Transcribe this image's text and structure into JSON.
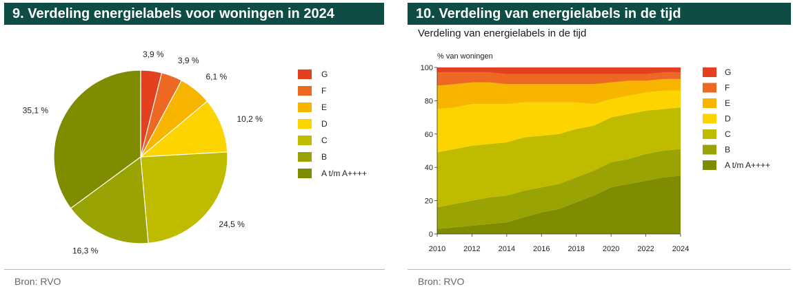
{
  "colors": {
    "G": "#e2401f",
    "F": "#ec6823",
    "E": "#f7b500",
    "D": "#fdd300",
    "C": "#bfbc00",
    "B": "#9aa304",
    "A": "#7f8c00",
    "banner": "#0f4c46"
  },
  "panel_left": {
    "title": "9. Verdeling energielabels voor woningen in 2024",
    "source": "Bron: RVO"
  },
  "panel_right": {
    "title": "10. Verdeling van energielabels in de tijd",
    "subtitle": "Verdeling van energielabels in de tijd",
    "source": "Bron: RVO"
  },
  "chart_data": [
    {
      "type": "pie",
      "slices": [
        {
          "label": "G",
          "value": 3.9,
          "display": "3,9 %"
        },
        {
          "label": "F",
          "value": 3.9,
          "display": "3,9 %"
        },
        {
          "label": "E",
          "value": 6.1,
          "display": "6,1 %"
        },
        {
          "label": "D",
          "value": 10.2,
          "display": "10,2 %"
        },
        {
          "label": "C",
          "value": 24.5,
          "display": "24,5 %"
        },
        {
          "label": "B",
          "value": 16.3,
          "display": "16,3 %"
        },
        {
          "label": "A t/m A++++",
          "value": 35.1,
          "display": "35,1 %"
        }
      ],
      "legend": [
        "G",
        "F",
        "E",
        "D",
        "C",
        "B",
        "A t/m A++++"
      ],
      "legend_position": "right"
    },
    {
      "type": "area",
      "stacked": true,
      "ylabel": "% van woningen",
      "ylim": [
        0,
        100
      ],
      "yticks": [
        0,
        20,
        40,
        60,
        80,
        100
      ],
      "xlim": [
        2010,
        2024
      ],
      "xticks": [
        2010,
        2012,
        2014,
        2016,
        2018,
        2020,
        2022,
        2024
      ],
      "x": [
        2010,
        2011,
        2012,
        2013,
        2014,
        2015,
        2016,
        2017,
        2018,
        2019,
        2020,
        2021,
        2022,
        2023,
        2024
      ],
      "series": [
        {
          "name": "A t/m A++++",
          "values": [
            3,
            4,
            5,
            6,
            7,
            10,
            13,
            15,
            19,
            23,
            28,
            30,
            32,
            34,
            35
          ]
        },
        {
          "name": "B",
          "values": [
            13,
            14,
            15,
            16,
            16,
            16,
            15,
            15,
            15,
            15,
            15,
            15,
            16,
            16,
            16
          ]
        },
        {
          "name": "C",
          "values": [
            33,
            33,
            33,
            32,
            32,
            32,
            31,
            30,
            29,
            27,
            27,
            27,
            26,
            25,
            25
          ]
        },
        {
          "name": "D",
          "values": [
            26,
            25,
            25,
            24,
            23,
            21,
            20,
            19,
            16,
            13,
            11,
            11,
            11,
            11,
            10
          ]
        },
        {
          "name": "E",
          "values": [
            14,
            14,
            13,
            13,
            12,
            11,
            11,
            11,
            11,
            12,
            10,
            9,
            7,
            7,
            7
          ]
        },
        {
          "name": "F",
          "values": [
            8,
            7,
            6,
            6,
            6,
            6,
            6,
            6,
            6,
            6,
            5,
            4,
            4,
            4,
            4
          ]
        },
        {
          "name": "G",
          "values": [
            3,
            3,
            3,
            3,
            4,
            4,
            4,
            4,
            4,
            4,
            4,
            4,
            4,
            3,
            3
          ]
        }
      ],
      "legend": [
        "G",
        "F",
        "E",
        "D",
        "C",
        "B",
        "A t/m A++++"
      ],
      "legend_position": "right"
    }
  ]
}
